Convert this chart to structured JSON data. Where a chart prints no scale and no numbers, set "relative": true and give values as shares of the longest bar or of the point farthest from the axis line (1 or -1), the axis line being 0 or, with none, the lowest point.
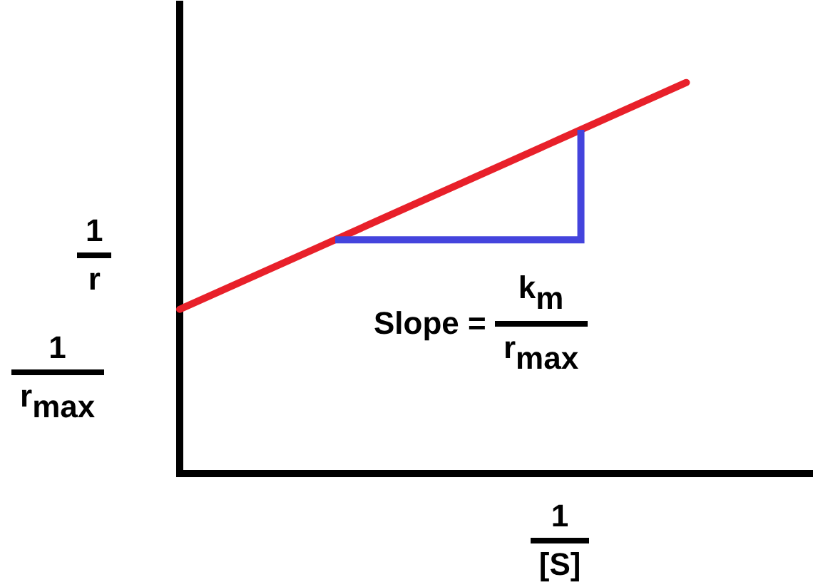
{
  "chart_data": {
    "type": "line",
    "relative": true,
    "categories": [
      null,
      null,
      null,
      null,
      null,
      null
    ],
    "series": [
      {
        "color": "#e8202a",
        "values": [
          0.42,
          0.565,
          0.71,
          0.855,
          1,
          null
        ]
      }
    ],
    "xlabel": "1/[S]",
    "ylabel": "1/r",
    "annotations": [
      "Slope = k$_{m}$/r$_{max}$",
      "1/r$_{max}$"
    ],
    "grid": false,
    "legend": false,
    "marker": "none"
  }
}
